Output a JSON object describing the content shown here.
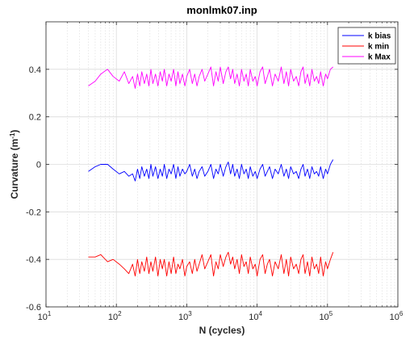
{
  "chart_data": {
    "type": "line",
    "title": "monlmk07.inp",
    "xlabel": "N (cycles)",
    "ylabel": "Curvature (m",
    "ylabel_sup": "-1",
    "ylabel_close": ")",
    "xscale": "log",
    "xlim": [
      10,
      1000000
    ],
    "ylim": [
      -0.6,
      0.6
    ],
    "x_ticks": [
      10,
      100,
      1000,
      10000,
      100000,
      1000000
    ],
    "x_tick_labels": [
      {
        "base": "10",
        "exp": "1"
      },
      {
        "base": "10",
        "exp": "2"
      },
      {
        "base": "10",
        "exp": "3"
      },
      {
        "base": "10",
        "exp": "4"
      },
      {
        "base": "10",
        "exp": "5"
      },
      {
        "base": "10",
        "exp": "6"
      }
    ],
    "y_ticks": [
      -0.6,
      -0.4,
      -0.2,
      0,
      0.2,
      0.4
    ],
    "y_tick_labels": [
      "-0.6",
      "-0.4",
      "-0.2",
      "0",
      "0.2",
      "0.4"
    ],
    "grid": true,
    "legend_position": "top-right",
    "series": [
      {
        "name": "k bias",
        "color": "#0000ff",
        "x": [
          40,
          50,
          60,
          75,
          90,
          110,
          130,
          150,
          170,
          185,
          200,
          215,
          230,
          250,
          270,
          290,
          310,
          330,
          360,
          390,
          420,
          450,
          480,
          520,
          560,
          600,
          650,
          700,
          750,
          800,
          870,
          940,
          1000,
          1100,
          1200,
          1300,
          1400,
          1500,
          1650,
          1800,
          2000,
          2200,
          2400,
          2600,
          2800,
          3000,
          3300,
          3600,
          3900,
          4200,
          4500,
          4800,
          5200,
          5600,
          6000,
          6500,
          7000,
          7500,
          8000,
          8700,
          9400,
          10000,
          11000,
          12000,
          13000,
          14000,
          15000,
          16500,
          18000,
          20000,
          22000,
          24000,
          26000,
          28000,
          30000,
          33000,
          36000,
          39000,
          42000,
          45000,
          48000,
          52000,
          56000,
          60000,
          65000,
          70000,
          75000,
          80000,
          87000,
          94000,
          100000,
          110000,
          120000
        ],
        "values": [
          -0.03,
          -0.01,
          0.0,
          0.0,
          -0.02,
          -0.04,
          -0.03,
          -0.05,
          -0.04,
          -0.07,
          -0.02,
          -0.06,
          -0.01,
          -0.05,
          -0.02,
          -0.06,
          0.0,
          -0.05,
          -0.01,
          -0.06,
          -0.02,
          -0.05,
          0.0,
          -0.06,
          -0.02,
          -0.04,
          0.0,
          -0.06,
          -0.01,
          -0.05,
          -0.02,
          -0.04,
          -0.03,
          0.0,
          -0.05,
          -0.02,
          -0.06,
          -0.03,
          -0.01,
          -0.05,
          -0.03,
          0.0,
          -0.06,
          -0.02,
          -0.04,
          0.0,
          -0.05,
          -0.01,
          0.01,
          -0.04,
          0.0,
          -0.05,
          -0.02,
          -0.06,
          0.0,
          -0.04,
          -0.02,
          -0.06,
          -0.01,
          -0.05,
          -0.03,
          -0.06,
          -0.02,
          0.0,
          -0.05,
          -0.03,
          -0.01,
          -0.06,
          -0.02,
          -0.04,
          0.0,
          -0.05,
          -0.02,
          -0.06,
          -0.01,
          -0.04,
          -0.03,
          -0.06,
          -0.02,
          0.0,
          -0.05,
          -0.02,
          -0.06,
          -0.01,
          -0.04,
          -0.03,
          -0.05,
          -0.01,
          -0.06,
          -0.02,
          -0.04,
          0.0,
          0.02
        ]
      },
      {
        "name": "k min",
        "color": "#ff0000",
        "x": [
          40,
          50,
          60,
          75,
          90,
          110,
          130,
          150,
          170,
          185,
          200,
          215,
          230,
          250,
          270,
          290,
          310,
          330,
          360,
          390,
          420,
          450,
          480,
          520,
          560,
          600,
          650,
          700,
          750,
          800,
          870,
          940,
          1000,
          1100,
          1200,
          1300,
          1400,
          1500,
          1650,
          1800,
          2000,
          2200,
          2400,
          2600,
          2800,
          3000,
          3300,
          3600,
          3900,
          4200,
          4500,
          4800,
          5200,
          5600,
          6000,
          6500,
          7000,
          7500,
          8000,
          8700,
          9400,
          10000,
          11000,
          12000,
          13000,
          14000,
          15000,
          16500,
          18000,
          20000,
          22000,
          24000,
          26000,
          28000,
          30000,
          33000,
          36000,
          39000,
          42000,
          45000,
          48000,
          52000,
          56000,
          60000,
          65000,
          70000,
          75000,
          80000,
          87000,
          94000,
          100000,
          110000,
          120000
        ],
        "values": [
          -0.39,
          -0.39,
          -0.38,
          -0.41,
          -0.4,
          -0.42,
          -0.44,
          -0.46,
          -0.42,
          -0.47,
          -0.4,
          -0.46,
          -0.41,
          -0.45,
          -0.39,
          -0.46,
          -0.41,
          -0.45,
          -0.39,
          -0.47,
          -0.4,
          -0.44,
          -0.4,
          -0.47,
          -0.41,
          -0.46,
          -0.39,
          -0.46,
          -0.42,
          -0.44,
          -0.4,
          -0.47,
          -0.43,
          -0.41,
          -0.46,
          -0.4,
          -0.45,
          -0.42,
          -0.38,
          -0.44,
          -0.41,
          -0.38,
          -0.47,
          -0.41,
          -0.44,
          -0.38,
          -0.43,
          -0.39,
          -0.37,
          -0.42,
          -0.39,
          -0.44,
          -0.4,
          -0.46,
          -0.38,
          -0.43,
          -0.41,
          -0.46,
          -0.39,
          -0.44,
          -0.42,
          -0.47,
          -0.4,
          -0.38,
          -0.46,
          -0.42,
          -0.4,
          -0.47,
          -0.41,
          -0.44,
          -0.38,
          -0.46,
          -0.4,
          -0.47,
          -0.39,
          -0.44,
          -0.42,
          -0.46,
          -0.4,
          -0.38,
          -0.46,
          -0.41,
          -0.47,
          -0.39,
          -0.44,
          -0.42,
          -0.46,
          -0.39,
          -0.47,
          -0.41,
          -0.44,
          -0.4,
          -0.37
        ]
      },
      {
        "name": "k Max",
        "color": "#ff00ff",
        "x": [
          40,
          50,
          60,
          75,
          90,
          110,
          130,
          150,
          170,
          185,
          200,
          215,
          230,
          250,
          270,
          290,
          310,
          330,
          360,
          390,
          420,
          450,
          480,
          520,
          560,
          600,
          650,
          700,
          750,
          800,
          870,
          940,
          1000,
          1100,
          1200,
          1300,
          1400,
          1500,
          1650,
          1800,
          2000,
          2200,
          2400,
          2600,
          2800,
          3000,
          3300,
          3600,
          3900,
          4200,
          4500,
          4800,
          5200,
          5600,
          6000,
          6500,
          7000,
          7500,
          8000,
          8700,
          9400,
          10000,
          11000,
          12000,
          13000,
          14000,
          15000,
          16500,
          18000,
          20000,
          22000,
          24000,
          26000,
          28000,
          30000,
          33000,
          36000,
          39000,
          42000,
          45000,
          48000,
          52000,
          56000,
          60000,
          65000,
          70000,
          75000,
          80000,
          87000,
          94000,
          100000,
          110000,
          120000
        ],
        "values": [
          0.33,
          0.35,
          0.38,
          0.4,
          0.37,
          0.35,
          0.39,
          0.34,
          0.37,
          0.32,
          0.38,
          0.33,
          0.39,
          0.34,
          0.38,
          0.33,
          0.4,
          0.34,
          0.38,
          0.33,
          0.39,
          0.35,
          0.4,
          0.33,
          0.38,
          0.35,
          0.4,
          0.33,
          0.39,
          0.34,
          0.38,
          0.33,
          0.37,
          0.4,
          0.34,
          0.38,
          0.33,
          0.37,
          0.4,
          0.35,
          0.38,
          0.41,
          0.33,
          0.39,
          0.35,
          0.41,
          0.34,
          0.39,
          0.41,
          0.36,
          0.4,
          0.34,
          0.38,
          0.33,
          0.4,
          0.35,
          0.38,
          0.33,
          0.4,
          0.35,
          0.37,
          0.33,
          0.39,
          0.41,
          0.34,
          0.37,
          0.4,
          0.33,
          0.38,
          0.35,
          0.41,
          0.34,
          0.39,
          0.33,
          0.4,
          0.35,
          0.37,
          0.33,
          0.39,
          0.41,
          0.34,
          0.38,
          0.33,
          0.4,
          0.35,
          0.37,
          0.34,
          0.39,
          0.33,
          0.38,
          0.36,
          0.4,
          0.41
        ]
      }
    ]
  }
}
